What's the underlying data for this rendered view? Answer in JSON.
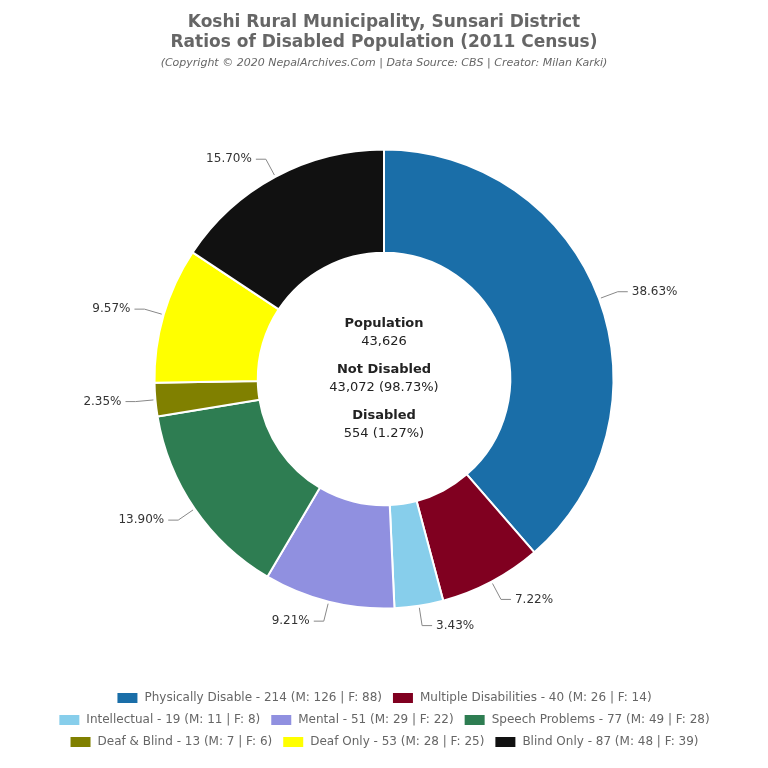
{
  "chart_data": {
    "type": "doughnut",
    "title": [
      "Koshi Rural Municipality, Sunsari District",
      "Ratios of Disabled Population (2011 Census)"
    ],
    "subtitle": "(Copyright © 2020 NepalArchives.Com | Data Source: CBS | Creator: Milan Karki)",
    "categories": [
      "Physically Disable - 214 (M: 126 | F: 88)",
      "Multiple Disabilities - 40 (M: 26 | F: 14)",
      "Intellectual - 19 (M: 11 | F: 8)",
      "Mental - 51 (M: 29 | F: 22)",
      "Speech Problems - 77 (M: 49 | F: 28)",
      "Deaf & Blind - 13 (M: 7 | F: 6)",
      "Deaf Only - 53 (M: 28 | F: 25)",
      "Blind Only - 87 (M: 48 | F: 39)"
    ],
    "values": [
      38.63,
      7.22,
      3.43,
      9.21,
      13.9,
      2.35,
      9.57,
      15.7
    ],
    "value_labels": [
      "38.63%",
      "7.22%",
      "3.43%",
      "9.21%",
      "13.90%",
      "2.35%",
      "9.57%",
      "15.70%"
    ],
    "colors": [
      "#1a6ea8",
      "#800020",
      "#87ceeb",
      "#9090e0",
      "#2e7d52",
      "#808000",
      "#ffff00",
      "#111111"
    ],
    "data_labels": true,
    "legend": "bottom",
    "annotations": [
      [
        "Population",
        "43,626"
      ],
      [
        "Not Disabled",
        "43,072 (98.73%)"
      ],
      [
        "Disabled",
        "554 (1.27%)"
      ]
    ]
  }
}
